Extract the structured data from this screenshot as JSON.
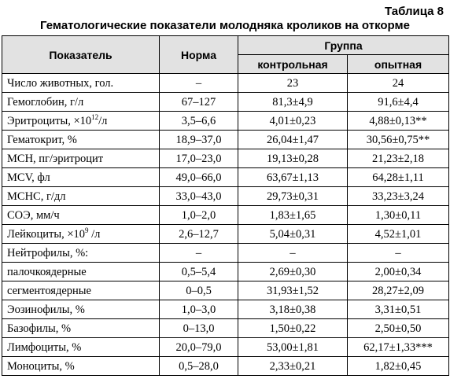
{
  "table_label": "Таблица 8",
  "title": "Гематологические показатели молодняка кроликов на откорме",
  "header": {
    "indicator": "Показатель",
    "norm": "Норма",
    "group": "Группа",
    "control": "контрольная",
    "experimental": "опытная"
  },
  "rows": [
    {
      "name": "Число животных, гол.",
      "norm": "–",
      "control": "23",
      "experimental": "24"
    },
    {
      "name": "Гемоглобин, г/л",
      "norm": "67–127",
      "control": "81,3±4,9",
      "experimental": "91,6±4,4"
    },
    {
      "name": "Эритроциты, ×10",
      "name_sup": "12",
      "name_suffix": "/л",
      "norm": "3,5–6,6",
      "control": "4,01±0,23",
      "experimental": "4,88±0,13**"
    },
    {
      "name": "Гематокрит, %",
      "norm": "18,9–37,0",
      "control": "26,04±1,47",
      "experimental": "30,56±0,75**"
    },
    {
      "name": "MCH, пг/эритроцит",
      "norm": "17,0–23,0",
      "control": "19,13±0,28",
      "experimental": "21,23±2,18"
    },
    {
      "name": "MCV, фл",
      "norm": "49,0–66,0",
      "control": "63,67±1,13",
      "experimental": "64,28±1,11"
    },
    {
      "name": "MCHC, г/дл",
      "norm": "33,0–43,0",
      "control": "29,73±0,31",
      "experimental": "33,23±3,24"
    },
    {
      "name": "СОЭ, мм/ч",
      "norm": "1,0–2,0",
      "control": "1,83±1,65",
      "experimental": "1,30±0,11"
    },
    {
      "name": "Лейкоциты, ×10",
      "name_sup": "9",
      "name_suffix": " /л",
      "norm": "2,6–12,7",
      "control": "5,04±0,31",
      "experimental": "4,52±1,01"
    },
    {
      "name": "Нейтрофилы, %:",
      "norm": "–",
      "control": "–",
      "experimental": "–"
    },
    {
      "name": "палочкоядерные",
      "norm": "0,5–5,4",
      "control": "2,69±0,30",
      "experimental": "2,00±0,34"
    },
    {
      "name": "сегментоядерные",
      "norm": "0–0,5",
      "control": "31,93±1,52",
      "experimental": "28,27±2,09"
    },
    {
      "name": "Эозинофилы, %",
      "norm": "1,0–3,0",
      "control": "3,18±0,38",
      "experimental": "3,31±0,51"
    },
    {
      "name": "Базофилы, %",
      "norm": "0–13,0",
      "control": "1,50±0,22",
      "experimental": "2,50±0,50"
    },
    {
      "name": "Лимфоциты, %",
      "norm": "20,0–79,0",
      "control": "53,00±1,81",
      "experimental": "62,17±1,33***"
    },
    {
      "name": "Моноциты, %",
      "norm": "0,5–28,0",
      "control": "2,33±0,21",
      "experimental": "1,82±0,45"
    }
  ]
}
